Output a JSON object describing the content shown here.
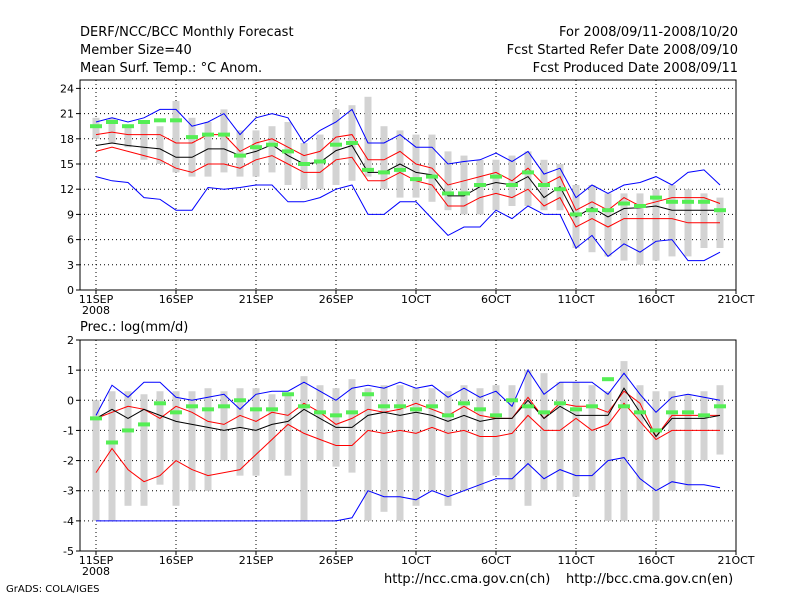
{
  "header": {
    "title": "DERF/NCC/BCC Monthly Forecast",
    "member_size": "Member Size=40",
    "variable": "Mean Surf. Temp.: °C Anom.",
    "period": "For 2008/09/11-2008/10/20",
    "refer_date": "Fcst Started Refer Date 2008/09/10",
    "produced_date": "Fcst Produced Date 2008/09/11"
  },
  "prec_label": "Prec.: log(mm/d)",
  "footer": {
    "credit": "GrADS: COLA/IGES",
    "url_ncc": "http://ncc.cma.gov.cn(ch)",
    "url_bcc": "http://bcc.cma.gov.cn(en)"
  },
  "colors": {
    "box": "#d3d3d3",
    "mean": "#000000",
    "spread": "#ff0000",
    "extreme": "#0000ff",
    "obs": "#55ee55"
  },
  "chart_data": [
    {
      "type": "line",
      "title": "Mean Surf. Temp.: °C Anom.",
      "x": [
        1,
        2,
        3,
        4,
        5,
        6,
        7,
        8,
        9,
        10,
        11,
        12,
        13,
        14,
        15,
        16,
        17,
        18,
        19,
        20,
        21,
        22,
        23,
        24,
        25,
        26,
        27,
        28,
        29,
        30,
        31,
        32,
        33,
        34,
        35,
        36,
        37,
        38,
        39,
        40
      ],
      "xticks": [
        {
          "x": 1,
          "label": "11SEP",
          "sub": "2008"
        },
        {
          "x": 6,
          "label": "16SEP"
        },
        {
          "x": 11,
          "label": "21SEP"
        },
        {
          "x": 16,
          "label": "26SEP"
        },
        {
          "x": 21,
          "label": "1OCT"
        },
        {
          "x": 26,
          "label": "6OCT"
        },
        {
          "x": 31,
          "label": "11OCT"
        },
        {
          "x": 36,
          "label": "16OCT"
        },
        {
          "x": 41,
          "label": "21OCT"
        }
      ],
      "xlim": [
        0,
        41
      ],
      "ylim": [
        0,
        25
      ],
      "yticks": [
        0,
        3,
        6,
        9,
        12,
        15,
        18,
        21,
        24
      ],
      "series": [
        {
          "name": "box_top",
          "values": [
            20.5,
            20.5,
            19.5,
            19.8,
            19.5,
            22.5,
            20.5,
            20,
            21.5,
            19,
            19,
            19.5,
            20,
            17.5,
            18.5,
            21.5,
            22,
            23,
            19.5,
            19,
            18.5,
            18.5,
            16.5,
            16,
            15.5,
            15.5,
            16,
            16.5,
            15.5,
            15,
            12.5,
            12.5,
            11.5,
            11.5,
            11.5,
            12,
            12.5,
            12,
            11.5,
            11
          ]
        },
        {
          "name": "box_bottom",
          "values": [
            18,
            17.5,
            17,
            15.5,
            15,
            14,
            13.5,
            13.5,
            14,
            13.5,
            13.5,
            14,
            12.5,
            12,
            12,
            12.5,
            13,
            13.5,
            12,
            11,
            11,
            10.5,
            9.5,
            9,
            9,
            9.5,
            10,
            10,
            9.5,
            9.5,
            5,
            4.5,
            4,
            3.5,
            3,
            3.5,
            4,
            4,
            5,
            5
          ]
        },
        {
          "name": "max",
          "values": [
            20,
            20.5,
            20,
            20.5,
            21.5,
            21.5,
            19.5,
            20,
            21,
            18.5,
            20.5,
            21,
            20.5,
            17.5,
            19,
            20,
            21.5,
            17.5,
            17.5,
            18.5,
            17,
            17,
            15,
            15.3,
            15.5,
            16.3,
            15.3,
            16.5,
            13.8,
            14.5,
            11,
            12.5,
            11.5,
            12.5,
            12.8,
            13.5,
            12.5,
            14,
            14.3,
            12.5
          ]
        },
        {
          "name": "p_hi",
          "values": [
            18.5,
            18.8,
            18.5,
            18.5,
            18.5,
            17.5,
            17.5,
            18.5,
            18.5,
            16.5,
            17.5,
            18,
            17,
            16,
            16.5,
            18.2,
            18.5,
            15.5,
            15.5,
            16.5,
            15,
            14.5,
            12.5,
            13,
            13.5,
            14,
            13,
            14.5,
            12.5,
            13.5,
            9.5,
            10.5,
            9.5,
            11,
            10,
            10.5,
            11,
            11,
            11,
            10.3
          ]
        },
        {
          "name": "mean",
          "values": [
            17.2,
            17.5,
            17.2,
            17,
            16.8,
            15.8,
            15.8,
            16.8,
            16.8,
            16,
            16.5,
            17.3,
            16,
            15,
            15.2,
            16.6,
            17.2,
            14,
            14,
            15,
            14,
            13.7,
            11.2,
            11.2,
            12.3,
            12.8,
            12.5,
            13.5,
            11,
            12.3,
            8.7,
            9.8,
            8.7,
            9.7,
            9.8,
            10,
            9.5,
            9.5,
            9.5,
            9.5
          ]
        },
        {
          "name": "p_lo",
          "values": [
            16.5,
            17,
            16.5,
            16,
            15.5,
            14.5,
            14,
            15,
            15,
            14.5,
            15.5,
            16,
            15,
            14,
            14,
            15.5,
            15.8,
            13,
            13,
            14,
            13,
            12.5,
            10,
            10,
            11,
            11.5,
            11,
            12,
            10,
            11,
            7.5,
            8.5,
            7.5,
            8.5,
            8.5,
            8.5,
            8.5,
            8,
            8,
            8
          ]
        },
        {
          "name": "min",
          "values": [
            13.5,
            13,
            12.8,
            11,
            10.8,
            9.5,
            9.5,
            12.2,
            12,
            12.2,
            12.5,
            12.5,
            10.5,
            10.5,
            11,
            12,
            12.5,
            9,
            9,
            10.5,
            10.5,
            8.5,
            6.5,
            7.5,
            7.5,
            9.5,
            8.5,
            10,
            9,
            9,
            5,
            6.5,
            4,
            5.5,
            4.5,
            5.8,
            6,
            3.5,
            3.5,
            4.5
          ]
        },
        {
          "name": "obs",
          "values": [
            19.5,
            20,
            19.5,
            20,
            20.2,
            20.2,
            18.2,
            18.5,
            18.5,
            16,
            17,
            17.3,
            16.5,
            15,
            15.3,
            17.3,
            17.5,
            14.3,
            14,
            14.3,
            13.2,
            13.5,
            11.5,
            11.5,
            12.5,
            13.5,
            12.5,
            14,
            12.5,
            12,
            9,
            9.5,
            9.5,
            10.3,
            10,
            11,
            10.5,
            10.5,
            10.5,
            9.5
          ]
        }
      ]
    },
    {
      "type": "line",
      "title": "Prec.: log(mm/d)",
      "x": [
        1,
        2,
        3,
        4,
        5,
        6,
        7,
        8,
        9,
        10,
        11,
        12,
        13,
        14,
        15,
        16,
        17,
        18,
        19,
        20,
        21,
        22,
        23,
        24,
        25,
        26,
        27,
        28,
        29,
        30,
        31,
        32,
        33,
        34,
        35,
        36,
        37,
        38,
        39,
        40
      ],
      "xticks": [
        {
          "x": 1,
          "label": "11SEP",
          "sub": "2008"
        },
        {
          "x": 6,
          "label": "16SEP"
        },
        {
          "x": 11,
          "label": "21SEP"
        },
        {
          "x": 16,
          "label": "26SEP"
        },
        {
          "x": 21,
          "label": "1OCT"
        },
        {
          "x": 26,
          "label": "6OCT"
        },
        {
          "x": 31,
          "label": "11OCT"
        },
        {
          "x": 36,
          "label": "16OCT"
        },
        {
          "x": 41,
          "label": "21OCT"
        }
      ],
      "xlim": [
        0,
        41
      ],
      "ylim": [
        -5,
        2
      ],
      "yticks": [
        -5,
        -4,
        -3,
        -2,
        -1,
        0,
        1,
        2
      ],
      "series": [
        {
          "name": "box_top",
          "values": [
            0,
            0.3,
            0.3,
            0.2,
            0.3,
            0.3,
            0.3,
            0.4,
            0.3,
            0.4,
            0.4,
            0.2,
            0.2,
            0.8,
            0.5,
            0.4,
            0.7,
            0.4,
            0.5,
            0.5,
            0.4,
            0.4,
            0.3,
            0.5,
            0.4,
            0.5,
            0.5,
            1,
            0.9,
            0.6,
            0.6,
            0.5,
            0.3,
            1.3,
            0.5,
            0.3,
            0.3,
            0.2,
            0.3,
            0.5
          ]
        },
        {
          "name": "box_bottom",
          "values": [
            -4,
            -4,
            -3.5,
            -3.5,
            -2.8,
            -3.5,
            -3,
            -3,
            -2,
            -2.5,
            -2.5,
            -2,
            -2.5,
            -4,
            -2,
            -2.2,
            -2.4,
            -4,
            -3.7,
            -4,
            -3.5,
            -3,
            -3.5,
            -3,
            -3,
            -2.5,
            -3,
            -3.5,
            -3,
            -3,
            -3.2,
            -3,
            -4,
            -4,
            -3,
            -4,
            -3,
            -3,
            -2,
            -1.8
          ]
        },
        {
          "name": "max",
          "values": [
            -0.5,
            0.5,
            0.1,
            0.6,
            0.6,
            0.1,
            0,
            0.1,
            0.2,
            -0.3,
            0.2,
            0.3,
            0.3,
            0.6,
            0.3,
            0,
            0.4,
            0.5,
            0.4,
            0.6,
            0.4,
            0.5,
            0.1,
            0.4,
            0.1,
            0.3,
            -0.2,
            1,
            0.2,
            0.6,
            0.6,
            0.6,
            0.2,
            0.9,
            0.2,
            -0.4,
            0.1,
            0.2,
            0.1,
            0
          ]
        },
        {
          "name": "p_hi",
          "values": [
            -0.6,
            -0.4,
            -0.2,
            -0.3,
            -0.6,
            -0.2,
            -0.4,
            -0.7,
            -0.8,
            -0.5,
            -0.7,
            -0.4,
            -0.5,
            -0.1,
            -0.4,
            -0.8,
            -0.6,
            -0.3,
            -0.4,
            -0.3,
            -0.1,
            -0.3,
            -0.5,
            -0.2,
            -0.5,
            -0.6,
            -0.6,
            0.1,
            -0.6,
            -0.1,
            -0.2,
            -0.2,
            -0.4,
            0.3,
            -0.1,
            -1.2,
            -0.5,
            -0.5,
            -0.5,
            -0.5
          ]
        },
        {
          "name": "mean",
          "values": [
            -0.6,
            -0.3,
            -0.6,
            -0.3,
            -0.5,
            -0.7,
            -0.8,
            -0.9,
            -1,
            -0.9,
            -1,
            -0.8,
            -0.7,
            -0.3,
            -0.6,
            -0.9,
            -0.9,
            -0.5,
            -0.4,
            -0.5,
            -0.4,
            -0.5,
            -0.7,
            -0.5,
            -0.7,
            -0.6,
            -0.6,
            0,
            -0.6,
            -0.2,
            -0.5,
            -0.5,
            -0.5,
            0.4,
            -0.4,
            -1.2,
            -0.6,
            -0.6,
            -0.6,
            -0.5
          ]
        },
        {
          "name": "p_lo",
          "values": [
            -2.4,
            -1.6,
            -2.3,
            -2.7,
            -2.5,
            -2,
            -2.3,
            -2.5,
            -2.4,
            -2.3,
            -1.8,
            -1.3,
            -0.8,
            -1.1,
            -1.3,
            -1.5,
            -1.5,
            -1,
            -1.1,
            -1,
            -1.1,
            -0.9,
            -1.1,
            -1,
            -1.2,
            -1.2,
            -1.1,
            -0.5,
            -1,
            -1,
            -0.6,
            -1,
            -0.8,
            -0.1,
            -0.7,
            -1.3,
            -1,
            -1,
            -1,
            -1
          ]
        },
        {
          "name": "min",
          "values": [
            -4,
            -4,
            -4,
            -4,
            -4,
            -4,
            -4,
            -4,
            -4,
            -4,
            -4,
            -4,
            -4,
            -4,
            -4,
            -4,
            -3.9,
            -3,
            -3.2,
            -3.2,
            -3.3,
            -3,
            -3.2,
            -3,
            -2.8,
            -2.6,
            -2.6,
            -2.1,
            -2.6,
            -2.3,
            -2.5,
            -2.5,
            -2,
            -1.9,
            -2.6,
            -3,
            -2.7,
            -2.8,
            -2.8,
            -2.9
          ]
        },
        {
          "name": "obs",
          "values": [
            -0.6,
            -1.4,
            -1,
            -0.8,
            -0.1,
            -0.4,
            -0.2,
            -0.3,
            -0.2,
            0,
            -0.3,
            -0.3,
            0.2,
            -0.2,
            -0.4,
            -0.5,
            -0.4,
            0.2,
            -0.2,
            -0.2,
            -0.3,
            -0.2,
            -0.5,
            -0.1,
            -0.3,
            -0.5,
            0,
            -0.2,
            -0.4,
            -0.1,
            -0.3,
            -0.2,
            0.7,
            -0.2,
            -0.4,
            -1,
            -0.4,
            -0.4,
            -0.5,
            -0.2
          ]
        }
      ]
    }
  ]
}
